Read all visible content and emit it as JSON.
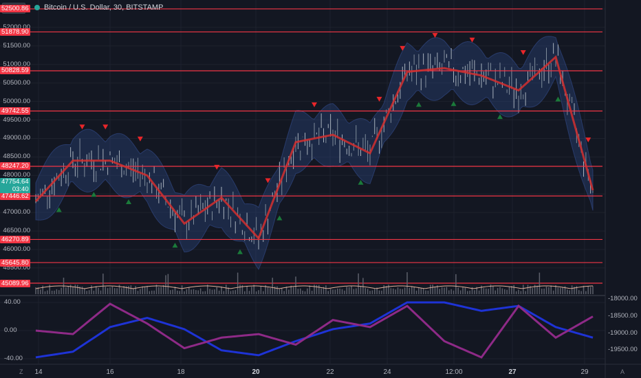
{
  "symbol": {
    "title": "Bitcoin / U.S. Dollar, 30, BITSTAMP",
    "currency": "USD"
  },
  "colors": {
    "background": "#131722",
    "level_line": "#f23645",
    "ma_line": "#d32f2f",
    "oscillator_purple": "#8e2a87",
    "oscillator_blue": "#1e33d6",
    "up_marker": "#1b7a3a",
    "down_marker": "#e8262a",
    "current_price": "#26a69a"
  },
  "price_axis": {
    "ticks": [
      "52500.00",
      "52000.00",
      "51500.00",
      "51000.00",
      "50500.00",
      "50000.00",
      "49500.00",
      "49000.00",
      "48500.00",
      "48000.00",
      "47500.00",
      "47000.00",
      "46500.00",
      "46000.00",
      "45500.00"
    ]
  },
  "level_tags": [
    "52500.86",
    "51878.90",
    "50828.59",
    "49742.55",
    "48247.20",
    "47446.62",
    "46270.89",
    "45645.80",
    "45089.96"
  ],
  "current_price": {
    "value": "47754.64",
    "countdown": "03:40"
  },
  "oscillator_axis": {
    "left_ticks": [
      "40.00",
      "0.00",
      "-40.00"
    ],
    "right_ticks": [
      "-18000.00",
      "-18500.00",
      "-19000.00",
      "-19500.00"
    ]
  },
  "time_axis": {
    "labels": [
      "14",
      "16",
      "18",
      "20",
      "22",
      "24",
      "12:00",
      "27",
      "29"
    ],
    "left_corner": "Z",
    "right_corner": "A"
  },
  "chart_data": [
    {
      "type": "line",
      "title": "Bitcoin / U.S. Dollar, 30, BITSTAMP",
      "x": [
        "14",
        "15",
        "16",
        "17",
        "18",
        "19",
        "20",
        "21",
        "22",
        "23",
        "24",
        "25",
        "26",
        "27",
        "28",
        "29"
      ],
      "series": [
        {
          "values": [
            47300,
            48400,
            48400,
            48000,
            46700,
            47400,
            46300,
            48900,
            49100,
            48600,
            50800,
            50900,
            50700,
            50300,
            51200,
            47600
          ]
        }
      ],
      "horizontal_levels": [
        52500.86,
        51878.9,
        50828.59,
        49742.55,
        48247.2,
        47446.62,
        46270.89,
        45645.8,
        45089.96
      ],
      "ylim": [
        45000,
        52800
      ]
    },
    {
      "type": "line",
      "x": [
        "14",
        "15",
        "16",
        "17",
        "18",
        "19",
        "20",
        "21",
        "22",
        "23",
        "24",
        "25",
        "26",
        "27",
        "28",
        "29"
      ],
      "series": [
        {
          "values": [
            -38,
            -30,
            5,
            18,
            2,
            -28,
            -35,
            -15,
            2,
            10,
            40,
            40,
            28,
            35,
            5,
            -10
          ]
        },
        {
          "values": [
            0,
            -5,
            38,
            10,
            -25,
            -10,
            -5,
            -20,
            15,
            5,
            35,
            -15,
            -38,
            35,
            -10,
            20
          ]
        }
      ],
      "ylim": [
        -45,
        45
      ]
    }
  ]
}
